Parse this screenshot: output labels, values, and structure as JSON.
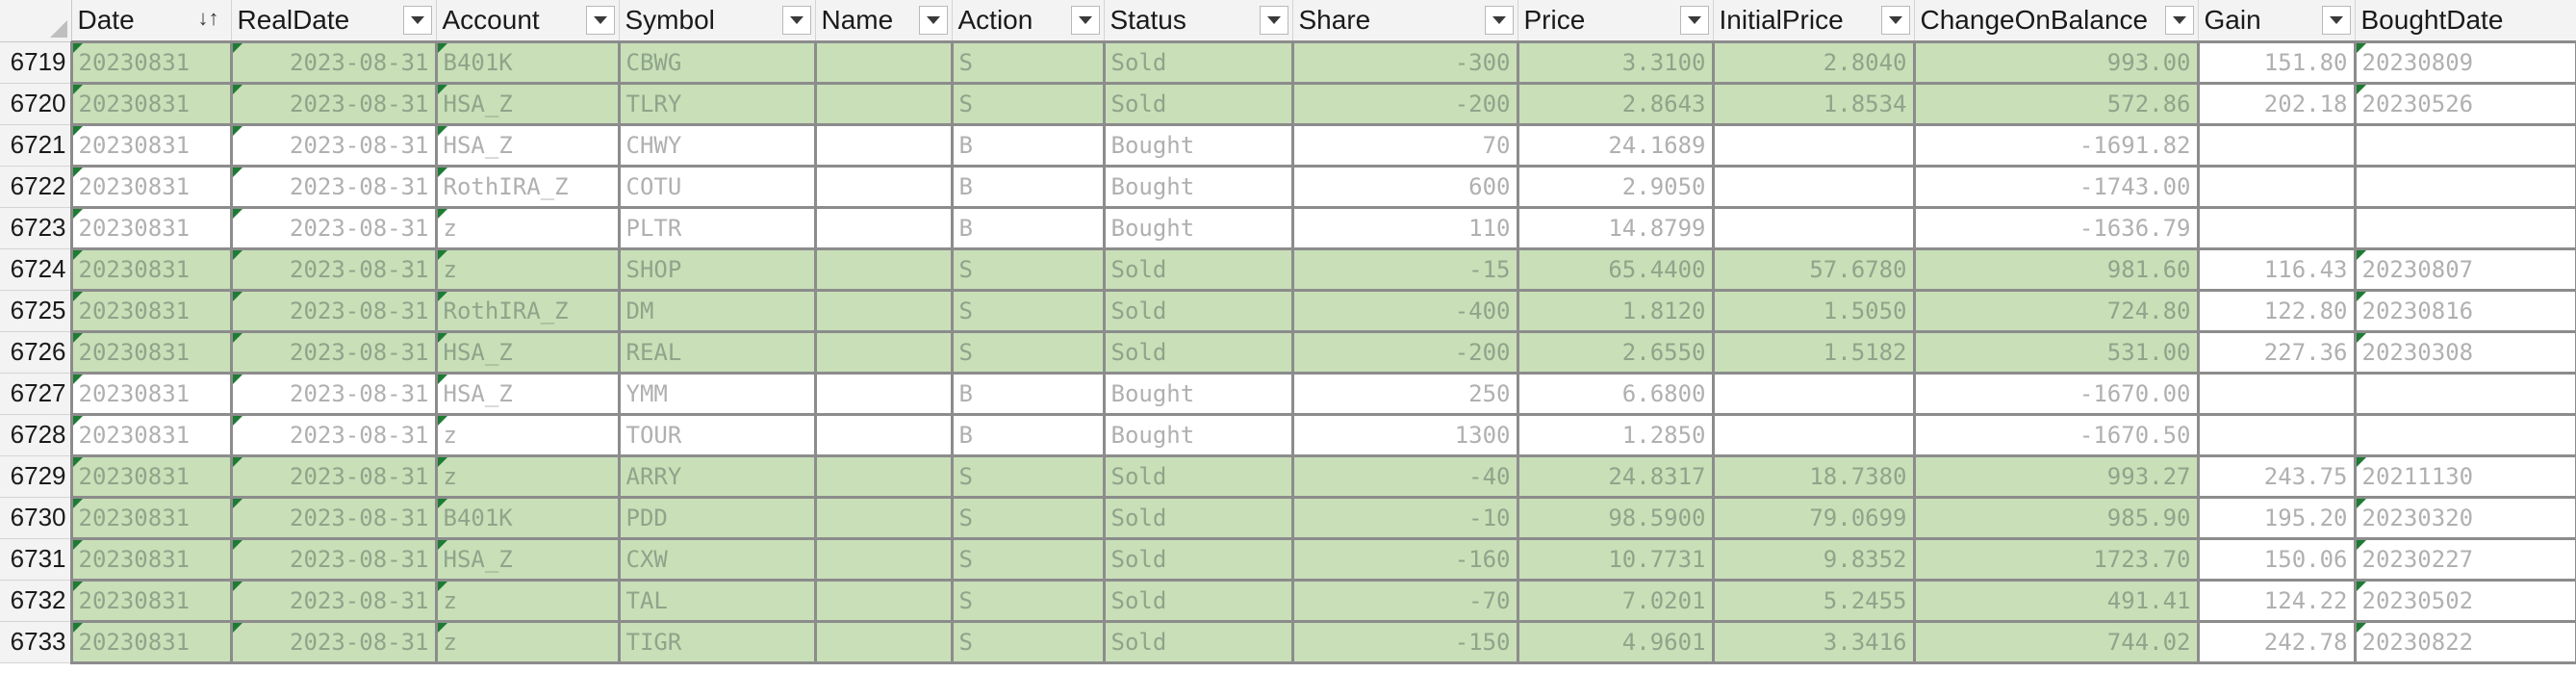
{
  "sheet": {
    "columns": [
      {
        "key": "date",
        "label": "Date",
        "sorted": true
      },
      {
        "key": "realdate",
        "label": "RealDate"
      },
      {
        "key": "account",
        "label": "Account"
      },
      {
        "key": "symbol",
        "label": "Symbol"
      },
      {
        "key": "name",
        "label": "Name"
      },
      {
        "key": "action",
        "label": "Action"
      },
      {
        "key": "status",
        "label": "Status"
      },
      {
        "key": "share",
        "label": "Share"
      },
      {
        "key": "price",
        "label": "Price"
      },
      {
        "key": "initialprice",
        "label": "InitialPrice"
      },
      {
        "key": "changeonbalance",
        "label": "ChangeOnBalance"
      },
      {
        "key": "gain",
        "label": "Gain"
      },
      {
        "key": "boughtdate",
        "label": "BoughtDate"
      }
    ],
    "sort_indicator": "↓↑",
    "colors": {
      "sold_fill": "#c8dfb8",
      "bought_fill": "#ffffff",
      "comment_flag": "#1e7b34"
    },
    "rows": [
      {
        "row": "6719",
        "date": "20230831",
        "realdate": "2023-08-31",
        "account": "B401K",
        "symbol": "CBWG",
        "name": "",
        "action": "S",
        "status": "Sold",
        "share": "-300",
        "price": "3.3100",
        "initialprice": "2.8040",
        "changeonbalance": "993.00",
        "gain": "151.80",
        "boughtdate": "20230809"
      },
      {
        "row": "6720",
        "date": "20230831",
        "realdate": "2023-08-31",
        "account": "HSA_Z",
        "symbol": "TLRY",
        "name": "",
        "action": "S",
        "status": "Sold",
        "share": "-200",
        "price": "2.8643",
        "initialprice": "1.8534",
        "changeonbalance": "572.86",
        "gain": "202.18",
        "boughtdate": "20230526"
      },
      {
        "row": "6721",
        "date": "20230831",
        "realdate": "2023-08-31",
        "account": "HSA_Z",
        "symbol": "CHWY",
        "name": "",
        "action": "B",
        "status": "Bought",
        "share": "70",
        "price": "24.1689",
        "initialprice": "",
        "changeonbalance": "-1691.82",
        "gain": "",
        "boughtdate": ""
      },
      {
        "row": "6722",
        "date": "20230831",
        "realdate": "2023-08-31",
        "account": "RothIRA_Z",
        "symbol": "COTU",
        "name": "",
        "action": "B",
        "status": "Bought",
        "share": "600",
        "price": "2.9050",
        "initialprice": "",
        "changeonbalance": "-1743.00",
        "gain": "",
        "boughtdate": ""
      },
      {
        "row": "6723",
        "date": "20230831",
        "realdate": "2023-08-31",
        "account": "z",
        "symbol": "PLTR",
        "name": "",
        "action": "B",
        "status": "Bought",
        "share": "110",
        "price": "14.8799",
        "initialprice": "",
        "changeonbalance": "-1636.79",
        "gain": "",
        "boughtdate": ""
      },
      {
        "row": "6724",
        "date": "20230831",
        "realdate": "2023-08-31",
        "account": "z",
        "symbol": "SHOP",
        "name": "",
        "action": "S",
        "status": "Sold",
        "share": "-15",
        "price": "65.4400",
        "initialprice": "57.6780",
        "changeonbalance": "981.60",
        "gain": "116.43",
        "boughtdate": "20230807"
      },
      {
        "row": "6725",
        "date": "20230831",
        "realdate": "2023-08-31",
        "account": "RothIRA_Z",
        "symbol": "DM",
        "name": "",
        "action": "S",
        "status": "Sold",
        "share": "-400",
        "price": "1.8120",
        "initialprice": "1.5050",
        "changeonbalance": "724.80",
        "gain": "122.80",
        "boughtdate": "20230816"
      },
      {
        "row": "6726",
        "date": "20230831",
        "realdate": "2023-08-31",
        "account": "HSA_Z",
        "symbol": "REAL",
        "name": "",
        "action": "S",
        "status": "Sold",
        "share": "-200",
        "price": "2.6550",
        "initialprice": "1.5182",
        "changeonbalance": "531.00",
        "gain": "227.36",
        "boughtdate": "20230308"
      },
      {
        "row": "6727",
        "date": "20230831",
        "realdate": "2023-08-31",
        "account": "HSA_Z",
        "symbol": "YMM",
        "name": "",
        "action": "B",
        "status": "Bought",
        "share": "250",
        "price": "6.6800",
        "initialprice": "",
        "changeonbalance": "-1670.00",
        "gain": "",
        "boughtdate": ""
      },
      {
        "row": "6728",
        "date": "20230831",
        "realdate": "2023-08-31",
        "account": "z",
        "symbol": "TOUR",
        "name": "",
        "action": "B",
        "status": "Bought",
        "share": "1300",
        "price": "1.2850",
        "initialprice": "",
        "changeonbalance": "-1670.50",
        "gain": "",
        "boughtdate": ""
      },
      {
        "row": "6729",
        "date": "20230831",
        "realdate": "2023-08-31",
        "account": "z",
        "symbol": "ARRY",
        "name": "",
        "action": "S",
        "status": "Sold",
        "share": "-40",
        "price": "24.8317",
        "initialprice": "18.7380",
        "changeonbalance": "993.27",
        "gain": "243.75",
        "boughtdate": "20211130"
      },
      {
        "row": "6730",
        "date": "20230831",
        "realdate": "2023-08-31",
        "account": "B401K",
        "symbol": "PDD",
        "name": "",
        "action": "S",
        "status": "Sold",
        "share": "-10",
        "price": "98.5900",
        "initialprice": "79.0699",
        "changeonbalance": "985.90",
        "gain": "195.20",
        "boughtdate": "20230320"
      },
      {
        "row": "6731",
        "date": "20230831",
        "realdate": "2023-08-31",
        "account": "HSA_Z",
        "symbol": "CXW",
        "name": "",
        "action": "S",
        "status": "Sold",
        "share": "-160",
        "price": "10.7731",
        "initialprice": "9.8352",
        "changeonbalance": "1723.70",
        "gain": "150.06",
        "boughtdate": "20230227"
      },
      {
        "row": "6732",
        "date": "20230831",
        "realdate": "2023-08-31",
        "account": "z",
        "symbol": "TAL",
        "name": "",
        "action": "S",
        "status": "Sold",
        "share": "-70",
        "price": "7.0201",
        "initialprice": "5.2455",
        "changeonbalance": "491.41",
        "gain": "124.22",
        "boughtdate": "20230502"
      },
      {
        "row": "6733",
        "date": "20230831",
        "realdate": "2023-08-31",
        "account": "z",
        "symbol": "TIGR",
        "name": "",
        "action": "S",
        "status": "Sold",
        "share": "-150",
        "price": "4.9601",
        "initialprice": "3.3416",
        "changeonbalance": "744.02",
        "gain": "242.78",
        "boughtdate": "20230822"
      }
    ]
  }
}
